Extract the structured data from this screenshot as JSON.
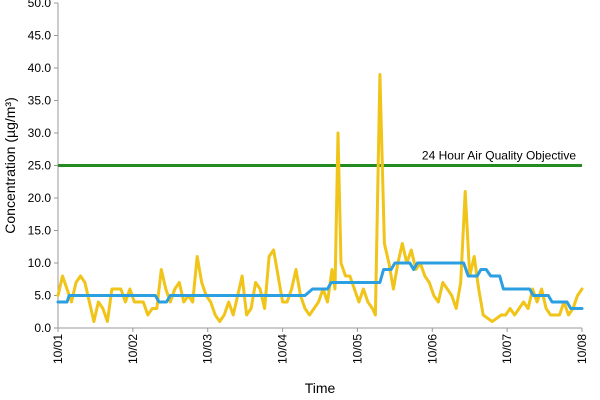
{
  "chart_data": {
    "type": "line",
    "title": "",
    "xlabel": "Time",
    "ylabel": "Concentration (µg/m³)",
    "ylim": [
      0,
      50
    ],
    "ytick_labels": [
      "0.0",
      "5.0",
      "10.0",
      "15.0",
      "20.0",
      "25.0",
      "30.0",
      "35.0",
      "40.0",
      "45.0",
      "50.0"
    ],
    "x_categories": [
      "10/01",
      "10/02",
      "10/03",
      "10/04",
      "10/05",
      "10/06",
      "10/07",
      "10/08"
    ],
    "grid": false,
    "reference_line": {
      "value": 25,
      "label": "24 Hour Air Quality Objective",
      "color": "#228b22"
    },
    "series": [
      {
        "color": "#f0c419",
        "points": [
          [
            0.0,
            5
          ],
          [
            0.06,
            8
          ],
          [
            0.12,
            6
          ],
          [
            0.18,
            4
          ],
          [
            0.24,
            7
          ],
          [
            0.3,
            8
          ],
          [
            0.36,
            7
          ],
          [
            0.42,
            4
          ],
          [
            0.48,
            1
          ],
          [
            0.54,
            4
          ],
          [
            0.6,
            3
          ],
          [
            0.66,
            1
          ],
          [
            0.72,
            6
          ],
          [
            0.78,
            6
          ],
          [
            0.84,
            6
          ],
          [
            0.9,
            4
          ],
          [
            0.96,
            6
          ],
          [
            1.02,
            4
          ],
          [
            1.08,
            4
          ],
          [
            1.14,
            4
          ],
          [
            1.2,
            2
          ],
          [
            1.26,
            3
          ],
          [
            1.32,
            3
          ],
          [
            1.38,
            9
          ],
          [
            1.44,
            6
          ],
          [
            1.5,
            4
          ],
          [
            1.56,
            6
          ],
          [
            1.62,
            7
          ],
          [
            1.68,
            4
          ],
          [
            1.74,
            5
          ],
          [
            1.8,
            4
          ],
          [
            1.86,
            11
          ],
          [
            1.92,
            7
          ],
          [
            1.98,
            5
          ],
          [
            2.04,
            4
          ],
          [
            2.1,
            2
          ],
          [
            2.16,
            1
          ],
          [
            2.22,
            2
          ],
          [
            2.28,
            4
          ],
          [
            2.34,
            2
          ],
          [
            2.4,
            5
          ],
          [
            2.46,
            8
          ],
          [
            2.52,
            2
          ],
          [
            2.58,
            3
          ],
          [
            2.64,
            7
          ],
          [
            2.7,
            6
          ],
          [
            2.76,
            3
          ],
          [
            2.82,
            11
          ],
          [
            2.88,
            12
          ],
          [
            2.94,
            8
          ],
          [
            3.0,
            4
          ],
          [
            3.06,
            4
          ],
          [
            3.12,
            6
          ],
          [
            3.18,
            9
          ],
          [
            3.24,
            5
          ],
          [
            3.3,
            3
          ],
          [
            3.36,
            2
          ],
          [
            3.42,
            3
          ],
          [
            3.48,
            4
          ],
          [
            3.54,
            6
          ],
          [
            3.6,
            4
          ],
          [
            3.66,
            9
          ],
          [
            3.7,
            6
          ],
          [
            3.74,
            30
          ],
          [
            3.78,
            10
          ],
          [
            3.84,
            8
          ],
          [
            3.9,
            8
          ],
          [
            3.96,
            6
          ],
          [
            4.02,
            4
          ],
          [
            4.08,
            6
          ],
          [
            4.14,
            4
          ],
          [
            4.2,
            3
          ],
          [
            4.24,
            2
          ],
          [
            4.3,
            39
          ],
          [
            4.36,
            13
          ],
          [
            4.42,
            10
          ],
          [
            4.48,
            6
          ],
          [
            4.54,
            10
          ],
          [
            4.6,
            13
          ],
          [
            4.66,
            10
          ],
          [
            4.72,
            12
          ],
          [
            4.78,
            9
          ],
          [
            4.84,
            10
          ],
          [
            4.9,
            8
          ],
          [
            4.96,
            7
          ],
          [
            5.02,
            5
          ],
          [
            5.08,
            4
          ],
          [
            5.14,
            7
          ],
          [
            5.2,
            6
          ],
          [
            5.26,
            5
          ],
          [
            5.32,
            3
          ],
          [
            5.38,
            7
          ],
          [
            5.44,
            21
          ],
          [
            5.5,
            8
          ],
          [
            5.56,
            11
          ],
          [
            5.62,
            6
          ],
          [
            5.68,
            2
          ],
          [
            5.74,
            1.5
          ],
          [
            5.8,
            1
          ],
          [
            5.86,
            1.5
          ],
          [
            5.92,
            2
          ],
          [
            5.98,
            2
          ],
          [
            6.04,
            3
          ],
          [
            6.1,
            2
          ],
          [
            6.16,
            3
          ],
          [
            6.22,
            4
          ],
          [
            6.28,
            3
          ],
          [
            6.34,
            6
          ],
          [
            6.4,
            4
          ],
          [
            6.46,
            6
          ],
          [
            6.52,
            3
          ],
          [
            6.58,
            2
          ],
          [
            6.64,
            2
          ],
          [
            6.7,
            2
          ],
          [
            6.76,
            4
          ],
          [
            6.82,
            2
          ],
          [
            6.88,
            3
          ],
          [
            6.94,
            5
          ],
          [
            7.0,
            6
          ]
        ]
      },
      {
        "color": "#2b9fe0",
        "points": [
          [
            0.0,
            4
          ],
          [
            0.12,
            4
          ],
          [
            0.15,
            5
          ],
          [
            1.3,
            5
          ],
          [
            1.35,
            4
          ],
          [
            1.45,
            4
          ],
          [
            1.5,
            5
          ],
          [
            3.3,
            5
          ],
          [
            3.4,
            6
          ],
          [
            3.6,
            6
          ],
          [
            3.65,
            7
          ],
          [
            4.3,
            7
          ],
          [
            4.35,
            9
          ],
          [
            4.45,
            9
          ],
          [
            4.5,
            10
          ],
          [
            4.7,
            10
          ],
          [
            4.75,
            9
          ],
          [
            4.8,
            10
          ],
          [
            5.42,
            10
          ],
          [
            5.48,
            8
          ],
          [
            5.6,
            8
          ],
          [
            5.65,
            9
          ],
          [
            5.72,
            9
          ],
          [
            5.78,
            8
          ],
          [
            5.9,
            8
          ],
          [
            5.95,
            6
          ],
          [
            6.3,
            6
          ],
          [
            6.35,
            5
          ],
          [
            6.55,
            5
          ],
          [
            6.6,
            4
          ],
          [
            6.8,
            4
          ],
          [
            6.85,
            3
          ],
          [
            7.0,
            3
          ]
        ]
      }
    ]
  }
}
